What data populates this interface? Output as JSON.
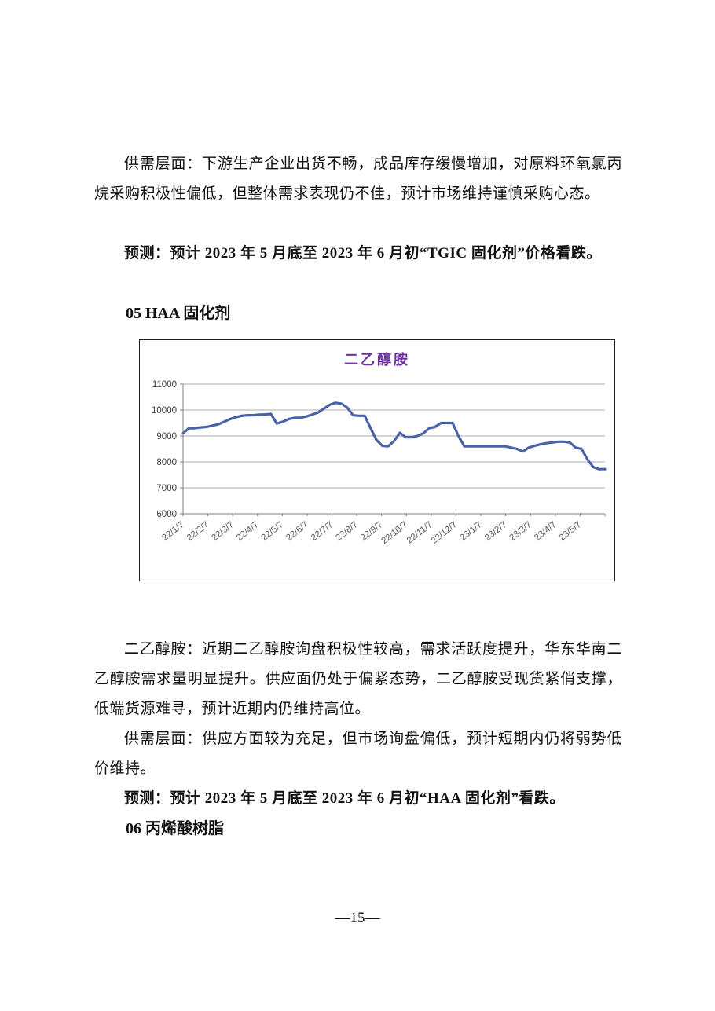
{
  "paragraphs": {
    "p1": "供需层面：下游生产企业出货不畅，成品库存缓慢增加，对原料环氧氯丙烷采购积极性偏低，但整体需求表现仍不佳，预计市场维持谨慎采购心态。",
    "p2": "预测：预计 2023 年 5 月底至 2023 年 6 月初“TGIC 固化剂”价格看跌。",
    "h05": "05 HAA 固化剂",
    "p3": "二乙醇胺：近期二乙醇胺询盘积极性较高，需求活跃度提升，华东华南二乙醇胺需求量明显提升。供应面仍处于偏紧态势，二乙醇胺受现货紧俏支撑，低端货源难寻，预计近期内仍维持高位。",
    "p4": "供需层面：供应方面较为充足，但市场询盘偏低，预计短期内仍将弱势低价维持。",
    "p5": "预测：预计 2023 年 5 月底至 2023 年 6 月初“HAA 固化剂”看跌。",
    "h06": "06 丙烯酸树脂"
  },
  "page": {
    "number_label": "—15—"
  },
  "chart_data": {
    "type": "line",
    "title": "二乙醇胺",
    "title_color": "#7030A0",
    "line_color": "#4A63A8",
    "grid": true,
    "legend": "none",
    "xlabel": "",
    "ylabel": "",
    "ylim": [
      6000,
      11000
    ],
    "y_ticks": [
      11000,
      10000,
      9000,
      8000,
      7000,
      6000
    ],
    "x_tick_labels": [
      "22/1/7",
      "22/2/7",
      "22/3/7",
      "22/4/7",
      "22/5/7",
      "22/6/7",
      "22/7/7",
      "22/8/7",
      "22/9/7",
      "22/10/7",
      "22/11/7",
      "22/12/7",
      "23/1/7",
      "23/2/7",
      "23/3/7",
      "23/4/7",
      "23/5/7"
    ],
    "values": [
      9100,
      9300,
      9300,
      9330,
      9350,
      9400,
      9450,
      9550,
      9650,
      9720,
      9780,
      9800,
      9800,
      9820,
      9830,
      9850,
      9480,
      9550,
      9650,
      9700,
      9700,
      9750,
      9820,
      9900,
      10050,
      10200,
      10280,
      10250,
      10100,
      9800,
      9780,
      9780,
      9300,
      8850,
      8620,
      8600,
      8800,
      9120,
      8950,
      8950,
      9000,
      9100,
      9300,
      9350,
      9500,
      9500,
      9500,
      9000,
      8600,
      8600,
      8600,
      8600,
      8600,
      8600,
      8600,
      8600,
      8550,
      8500,
      8400,
      8550,
      8620,
      8680,
      8720,
      8750,
      8780,
      8780,
      8750,
      8550,
      8500,
      8100,
      7800,
      7720,
      7720
    ]
  }
}
